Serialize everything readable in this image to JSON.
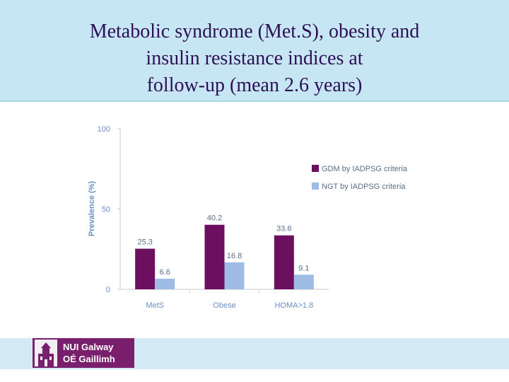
{
  "slide": {
    "title_lines": [
      "Metabolic syndrome (Met.S), obesity and",
      "insulin resistance indices at",
      "follow-up (mean 2.6 years)"
    ]
  },
  "chart_data": {
    "type": "bar",
    "title": "",
    "xlabel": "",
    "ylabel": "Prevalence (%)",
    "ylim": [
      0,
      100
    ],
    "yticks": [
      "0",
      "50",
      "100"
    ],
    "categories": [
      "MetS",
      "Obese",
      "HOMA>1.8"
    ],
    "series": [
      {
        "name": "GDM by IADPSG criteria",
        "color": "#6b0f5e",
        "values": [
          25.3,
          40.2,
          33.6
        ],
        "labels": [
          "25.3",
          "40.2",
          "33.6"
        ]
      },
      {
        "name": "NGT by IADPSG criteria",
        "color": "#9fbce6",
        "values": [
          6.6,
          16.8,
          9.1
        ],
        "labels": [
          "6.6",
          "16.8",
          "9.1"
        ]
      }
    ],
    "legend_position": "right"
  },
  "footer": {
    "logo_line1": "NUI Galway",
    "logo_line2": "OÉ Gaillimh",
    "logo_color": "#7a1f6c"
  }
}
